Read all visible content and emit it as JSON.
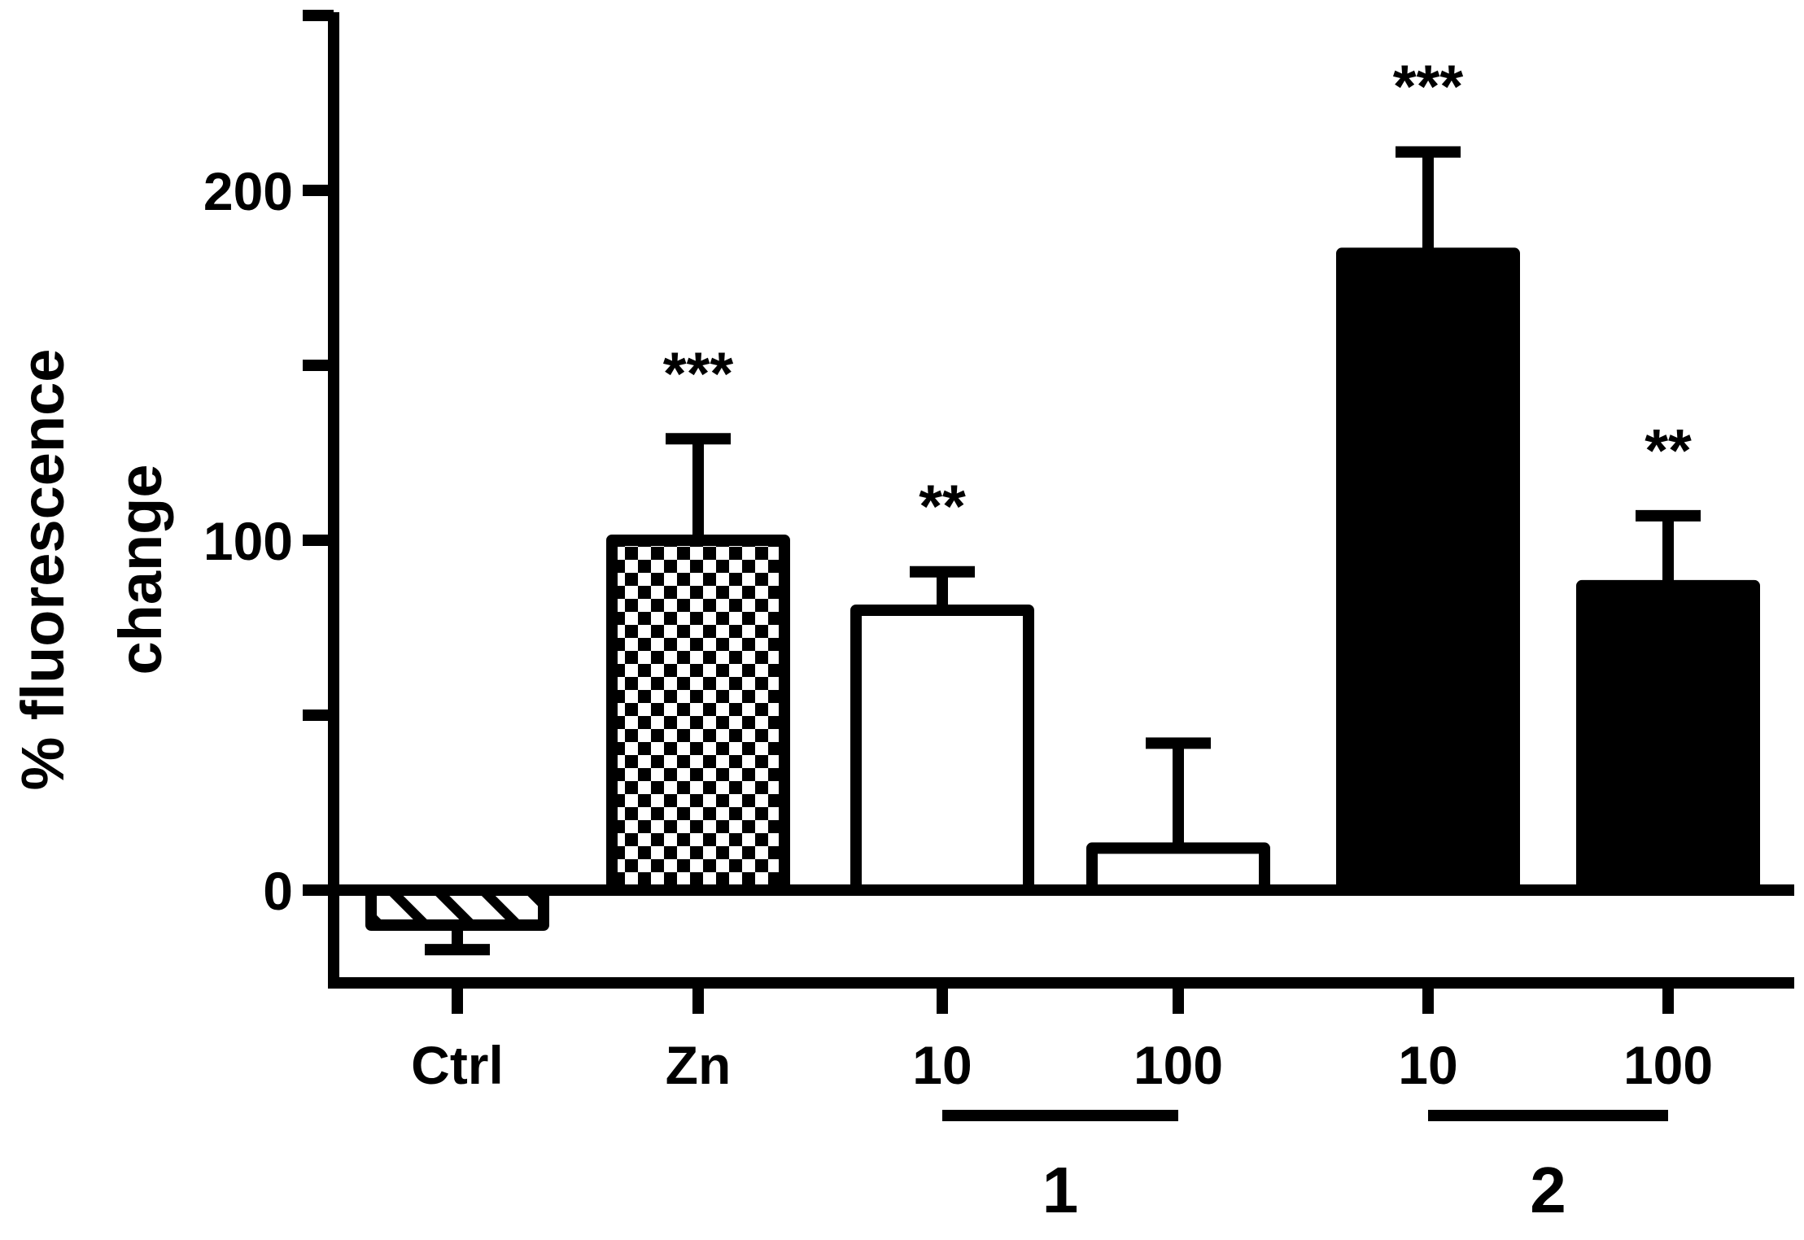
{
  "chart_data": {
    "type": "bar",
    "ylabel_lines": [
      "% fluorescence",
      "change"
    ],
    "ylim": [
      -25,
      250
    ],
    "yticks": [
      0,
      100,
      200
    ],
    "grid": false,
    "legend": "none",
    "categories": [
      "Ctrl",
      "Zn",
      "10",
      "100",
      "10",
      "100"
    ],
    "values": [
      -10,
      100,
      80,
      12,
      182,
      87
    ],
    "error_up": [
      7,
      29,
      11,
      30,
      29,
      20
    ],
    "error_direction": [
      "down",
      "up",
      "up",
      "up",
      "up",
      "up"
    ],
    "fill_patterns": [
      "hatch",
      "checker",
      "white",
      "white",
      "black",
      "black"
    ],
    "significance": [
      "",
      "***",
      "**",
      "",
      "***",
      "**"
    ],
    "groups": [
      {
        "label": "1",
        "members": [
          2,
          3
        ]
      },
      {
        "label": "2",
        "members": [
          4,
          5
        ]
      }
    ],
    "colors": {
      "ink": "#000000",
      "background": "#ffffff"
    }
  }
}
